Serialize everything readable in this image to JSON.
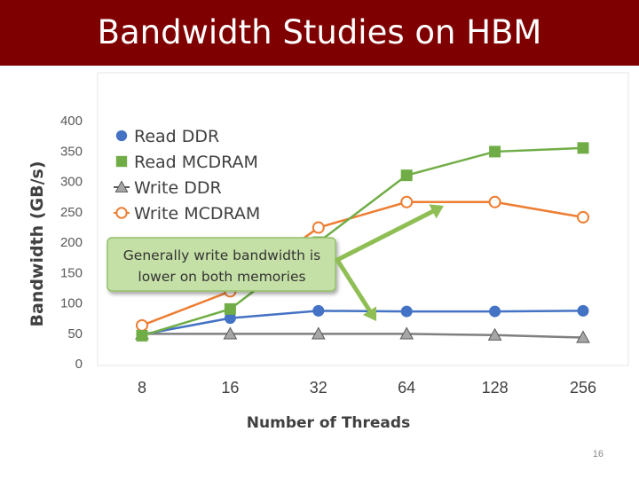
{
  "slide": {
    "title": "Bandwidth Studies on HBM",
    "page_number": "16"
  },
  "chart_data": {
    "type": "line",
    "title": "",
    "xlabel": "Number of Threads",
    "ylabel": "Bandwidth (GB/s)",
    "categories": [
      "8",
      "16",
      "32",
      "64",
      "128",
      "256"
    ],
    "ylim": [
      0,
      400
    ],
    "yticks": [
      0,
      50,
      100,
      150,
      200,
      250,
      300,
      350,
      400
    ],
    "grid": false,
    "legend": "top-left",
    "series": [
      {
        "name": "Read DDR",
        "values": [
          48,
          75,
          87,
          86,
          86,
          87
        ],
        "color": "#4472c4",
        "marker": "circle"
      },
      {
        "name": "Read MCDRAM",
        "values": [
          46,
          90,
          200,
          310,
          349,
          355
        ],
        "color": "#70ad47",
        "marker": "square"
      },
      {
        "name": "Write DDR",
        "values": [
          49,
          49,
          49,
          49,
          47,
          43
        ],
        "color": "#7f7f7f",
        "marker": "triangle"
      },
      {
        "name": "Write MCDRAM",
        "values": [
          63,
          119,
          224,
          266,
          266,
          241
        ],
        "color": "#ed7d31",
        "marker": "open-circle"
      }
    ],
    "annotation": {
      "text_lines": [
        "Generally write bandwidth is",
        "lower on both memories"
      ],
      "box_fill": "#c5e0a6",
      "box_border": "#95c06b",
      "arrow_color": "#8fbe54",
      "points_to": [
        {
          "series": "Write MCDRAM",
          "category": "64"
        },
        {
          "series": "Write DDR",
          "category": "64"
        }
      ]
    }
  }
}
